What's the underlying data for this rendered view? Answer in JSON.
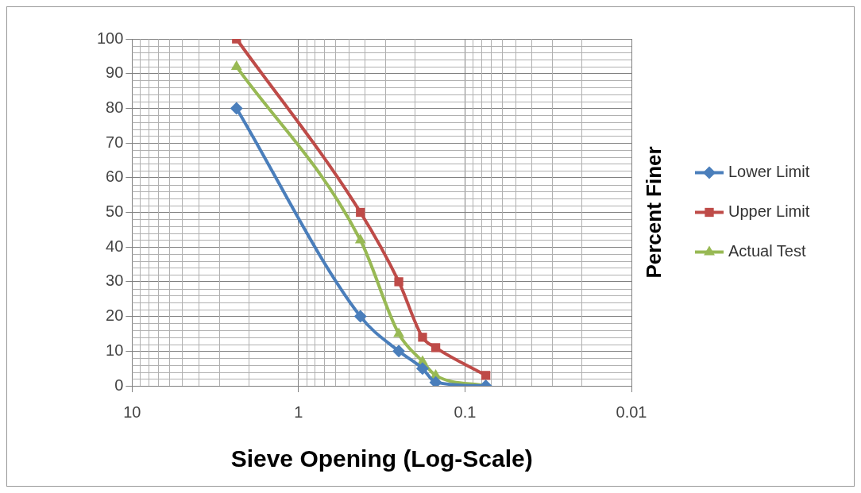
{
  "chart_data": {
    "type": "line",
    "xlabel": "Sieve Opening (Log-Scale)",
    "ylabel": "Percent Finer",
    "log": "x",
    "xlim": [
      10,
      0.01
    ],
    "xticks": [
      10,
      1,
      0.1,
      0.01
    ],
    "ylim": [
      0,
      100
    ],
    "yticks": [
      0,
      10,
      20,
      30,
      40,
      50,
      60,
      70,
      80,
      90,
      100
    ],
    "grid": true,
    "legend": "right",
    "x": [
      2.36,
      0.425,
      0.25,
      0.18,
      0.15,
      0.075
    ],
    "series": [
      {
        "name": "Lower Limit",
        "color": "#4a7ebb",
        "marker": "diamond",
        "values": [
          80,
          20,
          10,
          5,
          1,
          0
        ]
      },
      {
        "name": "Upper Limit",
        "color": "#be4b48",
        "marker": "square",
        "values": [
          100,
          50,
          30,
          14,
          11,
          3
        ]
      },
      {
        "name": "Actual Test",
        "color": "#98b954",
        "marker": "triangle",
        "values": [
          92,
          42,
          15,
          7,
          3,
          0
        ]
      }
    ]
  }
}
